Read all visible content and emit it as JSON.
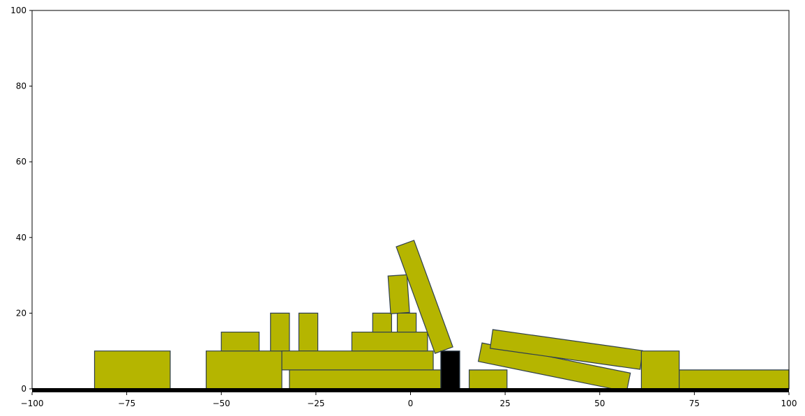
{
  "chart_data": {
    "type": "diagram",
    "xlim": [
      -100,
      100
    ],
    "ylim": [
      0,
      100
    ],
    "x_ticks": [
      -100,
      -75,
      -50,
      -25,
      0,
      25,
      50,
      75,
      100
    ],
    "y_ticks": [
      0,
      20,
      40,
      60,
      80,
      100
    ],
    "colors": {
      "block_fill": "#b5b500",
      "block_edge": "#2f3f4f",
      "obstacle_fill": "#000000",
      "ground": "#000000"
    },
    "ground": {
      "x0": -100,
      "x1": 100,
      "y": -0.5
    },
    "blocks": [
      {
        "name": "block-left-large",
        "cx": -73.5,
        "cy": 5,
        "w": 20,
        "h": 10,
        "angle": 0,
        "kind": "block"
      },
      {
        "name": "block-mid-large",
        "cx": -44,
        "cy": 5,
        "w": 20,
        "h": 10,
        "angle": 0,
        "kind": "block"
      },
      {
        "name": "block-top-left",
        "cx": -45,
        "cy": 12.5,
        "w": 10,
        "h": 5,
        "angle": 0,
        "kind": "block"
      },
      {
        "name": "pillar-a",
        "cx": -34.5,
        "cy": 15,
        "w": 5,
        "h": 10,
        "angle": 0,
        "kind": "block"
      },
      {
        "name": "pillar-b",
        "cx": -27,
        "cy": 15,
        "w": 5,
        "h": 10,
        "angle": 0,
        "kind": "block"
      },
      {
        "name": "beam-lower",
        "cx": -12,
        "cy": 2.5,
        "w": 40,
        "h": 5,
        "angle": 0,
        "kind": "block"
      },
      {
        "name": "beam-upper",
        "cx": -14,
        "cy": 7.5,
        "w": 40,
        "h": 5,
        "angle": 0,
        "kind": "block"
      },
      {
        "name": "slab-mid",
        "cx": -5.5,
        "cy": 12.5,
        "w": 20,
        "h": 5,
        "angle": 0,
        "kind": "block"
      },
      {
        "name": "small-cube-a",
        "cx": -7.5,
        "cy": 17.5,
        "w": 5,
        "h": 5,
        "angle": 0,
        "kind": "block"
      },
      {
        "name": "small-cube-b",
        "cx": -1,
        "cy": 17.5,
        "w": 5,
        "h": 5,
        "angle": 0,
        "kind": "block"
      },
      {
        "name": "tilted-short",
        "cx": -3.1,
        "cy": 25,
        "w": 5,
        "h": 10,
        "angle": 4,
        "kind": "block"
      },
      {
        "name": "tilted-long",
        "cx": 3.7,
        "cy": 24.3,
        "w": 5,
        "h": 30,
        "angle": 20,
        "kind": "block"
      },
      {
        "name": "black-obstacle",
        "cx": 10.5,
        "cy": 5,
        "w": 5,
        "h": 10,
        "angle": 0,
        "kind": "obstacle"
      },
      {
        "name": "block-small-right",
        "cx": 20.5,
        "cy": 2.5,
        "w": 10,
        "h": 5,
        "angle": 0,
        "kind": "block"
      },
      {
        "name": "plank-lower",
        "cx": 38,
        "cy": 5.7,
        "w": 40,
        "h": 5,
        "angle": -11.5,
        "kind": "block"
      },
      {
        "name": "plank-upper",
        "cx": 41.2,
        "cy": 10.4,
        "w": 40,
        "h": 5,
        "angle": -8,
        "kind": "block"
      },
      {
        "name": "block-right-cube",
        "cx": 66,
        "cy": 5,
        "w": 10,
        "h": 10,
        "angle": 0,
        "kind": "block"
      },
      {
        "name": "block-far-right",
        "cx": 85.5,
        "cy": 2.5,
        "w": 29,
        "h": 5,
        "angle": 0,
        "kind": "block"
      }
    ]
  }
}
